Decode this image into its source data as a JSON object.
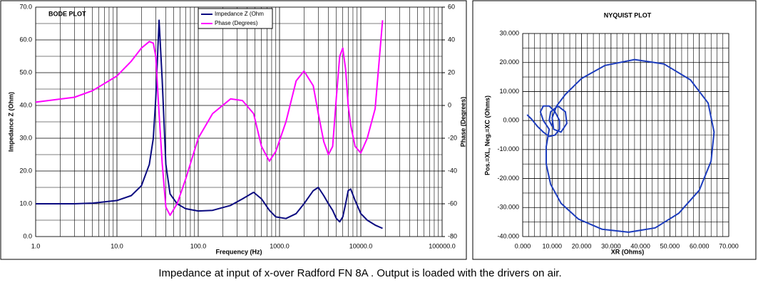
{
  "chart_data": [
    {
      "type": "line",
      "title": "BODE PLOT",
      "x_label": "Frequency (Hz)",
      "y_label": "Impedance Z (Ohm)",
      "y2_label": "Phase (Degrees)",
      "xscale": "log",
      "grid": true,
      "legend": "top",
      "xlim": [
        1,
        100000
      ],
      "xticks": [
        {
          "value": 1,
          "label": "1.0"
        },
        {
          "value": 10,
          "label": "10.0"
        },
        {
          "value": 100,
          "label": "100.0"
        },
        {
          "value": 1000,
          "label": "1000.0"
        },
        {
          "value": 10000,
          "label": "10000.0"
        },
        {
          "value": 100000,
          "label": "100000.0"
        }
      ],
      "ylim": [
        0,
        70
      ],
      "yticks": [
        {
          "value": 0,
          "label": "0.0"
        },
        {
          "value": 10,
          "label": "10.0"
        },
        {
          "value": 20,
          "label": "20.0"
        },
        {
          "value": 30,
          "label": "30.0"
        },
        {
          "value": 40,
          "label": "40.0"
        },
        {
          "value": 50,
          "label": "50.0"
        },
        {
          "value": 60,
          "label": "60.0"
        },
        {
          "value": 70,
          "label": "70.0"
        }
      ],
      "y2lim": [
        -80,
        60
      ],
      "y2ticks": [
        -80,
        -60,
        -40,
        -20,
        0,
        20,
        40,
        60
      ],
      "x": [
        1,
        3,
        5,
        10,
        15,
        20,
        25,
        28,
        30,
        33,
        36,
        40,
        45,
        55,
        70,
        100,
        150,
        250,
        350,
        480,
        600,
        750,
        900,
        1200,
        1600,
        2000,
        2600,
        3000,
        3500,
        4000,
        4500,
        5000,
        5500,
        6000,
        6500,
        7000,
        7500,
        8500,
        10000,
        12000,
        15000,
        18500
      ],
      "series": [
        {
          "name": "Impedance Z (Ohm",
          "color": "#0a0a80",
          "values": [
            10,
            10,
            10.2,
            11,
            12.5,
            15.5,
            22,
            30,
            42,
            66,
            48,
            22,
            13,
            10,
            8.5,
            7.8,
            8,
            9.5,
            11.5,
            13.5,
            11.5,
            8,
            6,
            5.5,
            7,
            10,
            14,
            15,
            12.5,
            10,
            8,
            5.5,
            4.5,
            6,
            10,
            14,
            14.5,
            11,
            7,
            5,
            3.5,
            2.5
          ]
        },
        {
          "name": "Phase (Degrees)",
          "color": "#ff00ff",
          "axis": "y2",
          "values": [
            2,
            5,
            9,
            18,
            27,
            35,
            39,
            38,
            30,
            -5,
            -35,
            -62,
            -67,
            -60,
            -45,
            -20,
            -5,
            4,
            3,
            -5,
            -25,
            -34,
            -28,
            -10,
            15,
            21,
            12,
            -5,
            -22,
            -30,
            -25,
            5,
            30,
            35,
            22,
            0,
            -12,
            -25,
            -29,
            -20,
            -2,
            52
          ]
        }
      ]
    },
    {
      "type": "line",
      "title": "NYQUIST PLOT",
      "x_label": "XR (Ohms)",
      "y_label": "Pos.=XL, Neg.=XC (Ohms)",
      "xscale": "linear",
      "grid": true,
      "xlim": [
        0,
        70
      ],
      "xticks": [
        {
          "value": 0,
          "label": "0.000"
        },
        {
          "value": 10,
          "label": "10.000"
        },
        {
          "value": 20,
          "label": "20.000"
        },
        {
          "value": 30,
          "label": "30.000"
        },
        {
          "value": 40,
          "label": "40.000"
        },
        {
          "value": 50,
          "label": "50.000"
        },
        {
          "value": 60,
          "label": "60.000"
        },
        {
          "value": 70,
          "label": "70.000"
        }
      ],
      "ylim": [
        -40,
        30
      ],
      "yticks": [
        {
          "value": -40,
          "label": "-40.000"
        },
        {
          "value": -30,
          "label": "-30.000"
        },
        {
          "value": -20,
          "label": "-20.000"
        },
        {
          "value": -10,
          "label": "-10.000"
        },
        {
          "value": 0,
          "label": "0.000"
        },
        {
          "value": 10,
          "label": "10.000"
        },
        {
          "value": 20,
          "label": "20.000"
        },
        {
          "value": 30,
          "label": "30.000"
        }
      ],
      "x": [
        1.5,
        3,
        5,
        7,
        9,
        11,
        12.5,
        12.5,
        11,
        9,
        7,
        6,
        7,
        9,
        8,
        8,
        9.5,
        13,
        19,
        27,
        36,
        45,
        53,
        60,
        64,
        65,
        63,
        57,
        48,
        38,
        28,
        20,
        14.5,
        11.5,
        10,
        10.5,
        13,
        15,
        14.5,
        12,
        9.5,
        9,
        10
      ],
      "series": [
        {
          "color": "#1c3cbc",
          "values": [
            2,
            0.5,
            -2,
            -4,
            -5.5,
            -5,
            -3,
            0,
            3,
            5,
            5,
            3,
            0,
            -3,
            -9,
            -15,
            -22,
            -28.5,
            -34,
            -37.5,
            -38.5,
            -37,
            -32,
            -24,
            -14,
            -4,
            6,
            14,
            19.5,
            21,
            19,
            14.5,
            9,
            5,
            1,
            -3,
            -4,
            -1,
            3,
            5,
            3,
            0,
            -2
          ]
        }
      ]
    }
  ],
  "caption": "Impedance at input of x-over Radford FN 8A .  Output is loaded with  the drivers on air."
}
